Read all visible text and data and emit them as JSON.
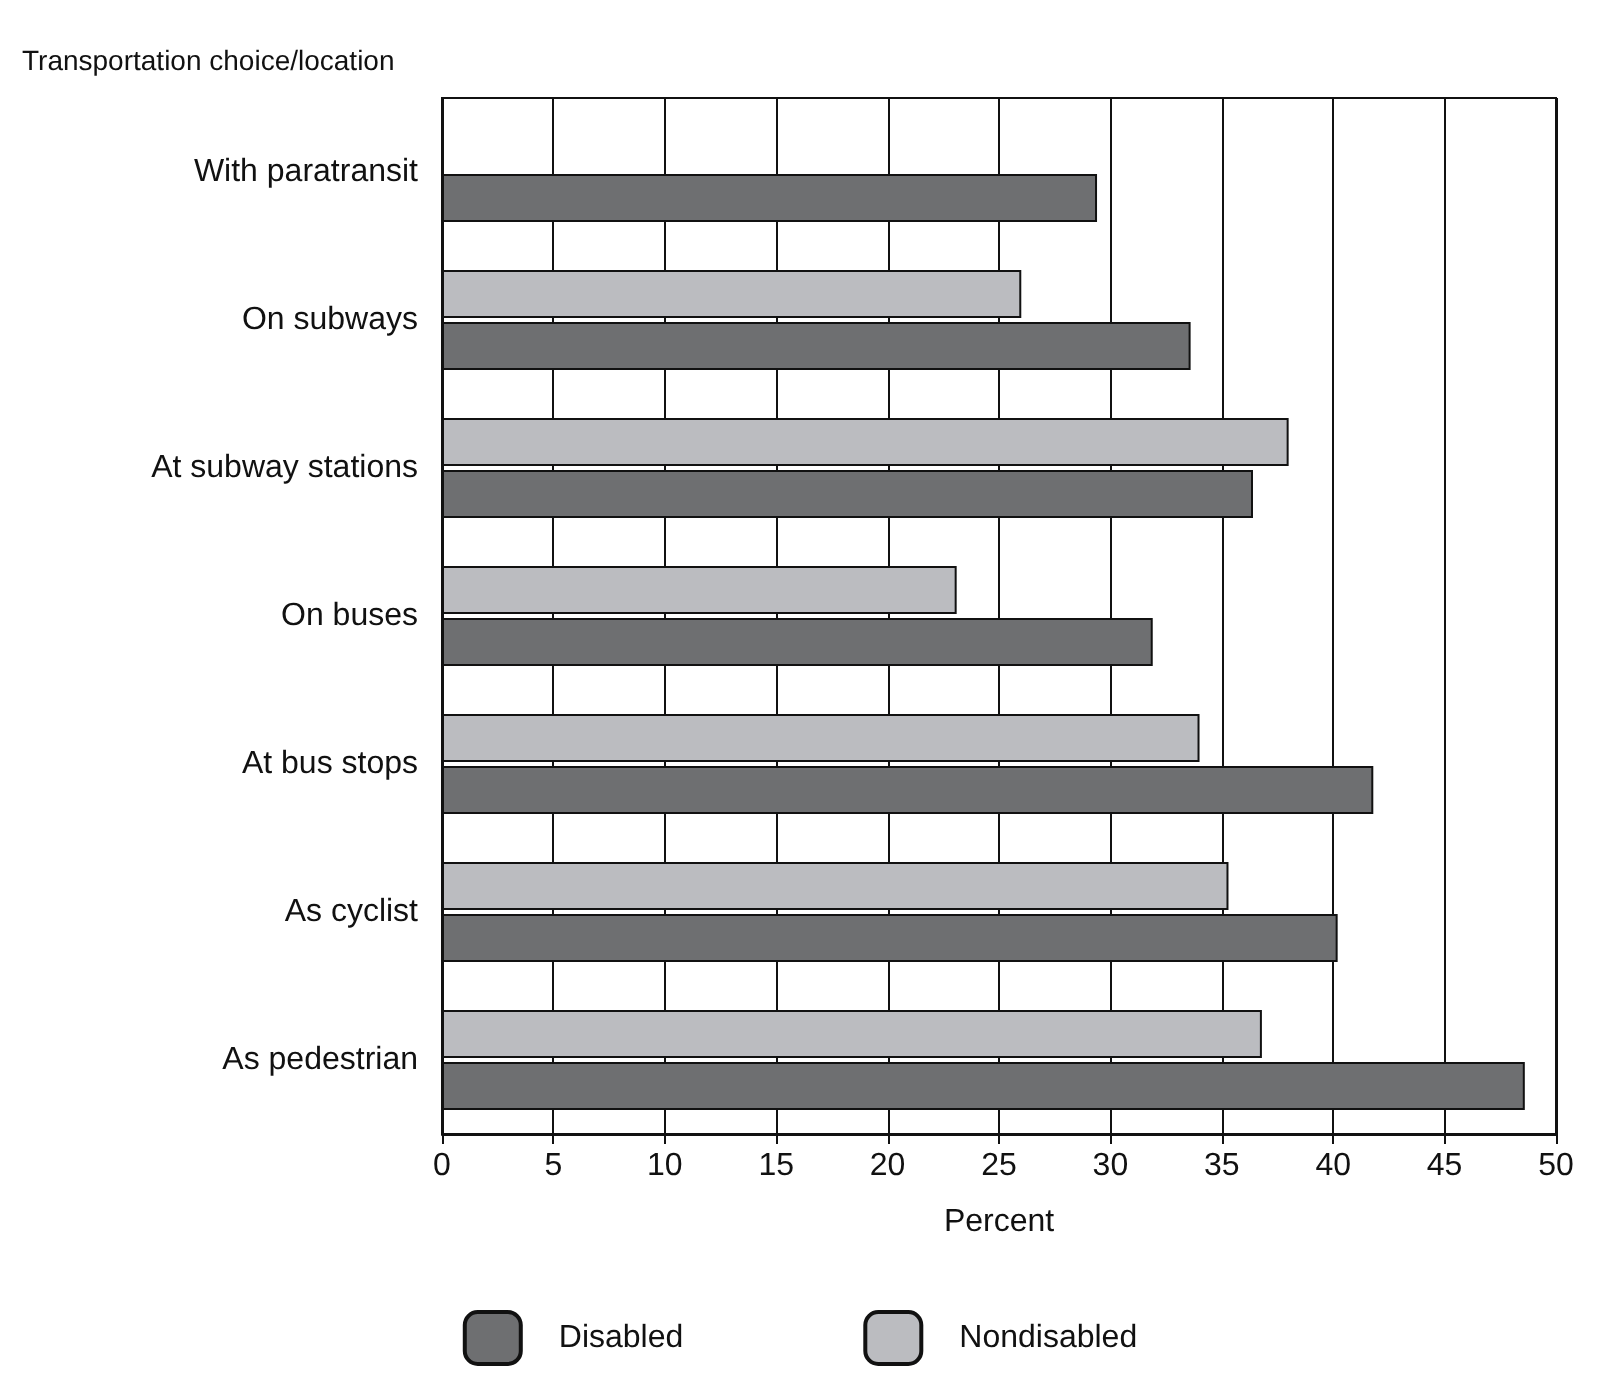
{
  "chart_data": {
    "type": "bar",
    "orientation": "horizontal",
    "ylabel": "Transportation choice/location",
    "xlabel": "Percent",
    "categories": [
      "With paratransit",
      "On subways",
      "At subway stations",
      "On buses",
      "At bus stops",
      "As cyclist",
      "As pedestrian"
    ],
    "series": [
      {
        "name": "Disabled",
        "color": "#6e6f71",
        "values": [
          29.4,
          33.6,
          36.4,
          31.9,
          41.8,
          40.2,
          48.6
        ]
      },
      {
        "name": "Nondisabled",
        "color": "#bbbcc0",
        "values": [
          null,
          26.0,
          38.0,
          23.1,
          34.0,
          35.3,
          36.8
        ]
      }
    ],
    "xlim": [
      0,
      50
    ],
    "xticks": [
      0,
      5,
      10,
      15,
      20,
      25,
      30,
      35,
      40,
      45,
      50
    ],
    "grid": "x",
    "legend": "bottom"
  }
}
